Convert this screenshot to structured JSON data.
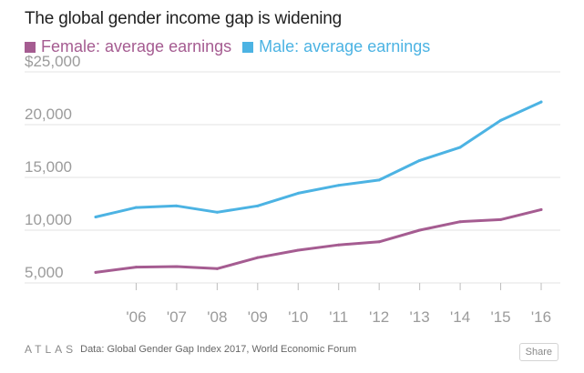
{
  "chart_data": {
    "type": "line",
    "title": "The global gender income gap is widening",
    "xlabel": "",
    "ylabel": "",
    "x": [
      2005,
      2006,
      2007,
      2008,
      2009,
      2010,
      2011,
      2012,
      2013,
      2014,
      2015,
      2016
    ],
    "x_tick_labels": [
      "'06",
      "'07",
      "'08",
      "'09",
      "'10",
      "'11",
      "'12",
      "'13",
      "'14",
      "'15",
      "'16"
    ],
    "y_tick_labels": [
      "$25,000",
      "20,000",
      "15,000",
      "10,000",
      "5,000"
    ],
    "y_ticks": [
      25000,
      20000,
      15000,
      10000,
      5000
    ],
    "ylim": [
      5000,
      25000
    ],
    "grid": true,
    "legend_position": "top-left",
    "series": [
      {
        "name": "Female: average earnings",
        "color": "#a55c91",
        "values": [
          6000,
          6500,
          6550,
          6350,
          7400,
          8100,
          8600,
          8900,
          10000,
          10800,
          11000,
          11950
        ]
      },
      {
        "name": "Male: average earnings",
        "color": "#4cb3e3",
        "values": [
          11250,
          12150,
          12300,
          11700,
          12300,
          13500,
          14250,
          14750,
          16600,
          17850,
          20400,
          22150
        ]
      }
    ]
  },
  "footer": {
    "logo_text": "ATLAS",
    "source_text": "Data:  Global Gender Gap Index 2017, World Economic Forum",
    "share_label": "Share"
  }
}
